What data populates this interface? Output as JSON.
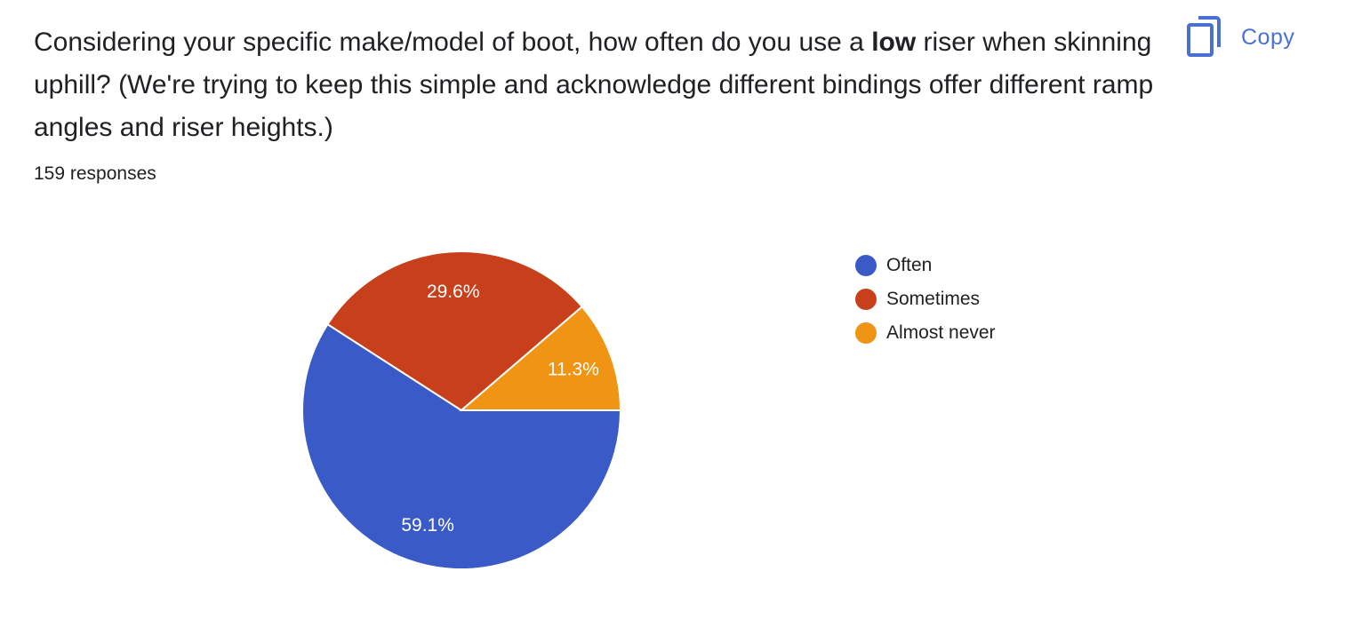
{
  "question": {
    "before": "Considering your specific make/model of boot, how often do you use a ",
    "emphasis": "low",
    "after": " riser when skinning uphill? (We're trying to keep this simple and acknowledge different bindings offer different ramp angles and riser heights.)"
  },
  "responses_label": "159 responses",
  "copy": {
    "label": "Copy",
    "icon": "copy-icon",
    "color": "#4a6fd6"
  },
  "chart_data": {
    "type": "pie",
    "slices": [
      {
        "label": "Often",
        "value": 59.1,
        "display": "59.1%",
        "color": "#3a5bc7"
      },
      {
        "label": "Sometimes",
        "value": 29.6,
        "display": "29.6%",
        "color": "#c8401b"
      },
      {
        "label": "Almost never",
        "value": 11.3,
        "display": "11.3%",
        "color": "#f09413"
      }
    ],
    "legend": {
      "placement": "right"
    },
    "start": "3 o'clock",
    "direction": "clockwise"
  }
}
